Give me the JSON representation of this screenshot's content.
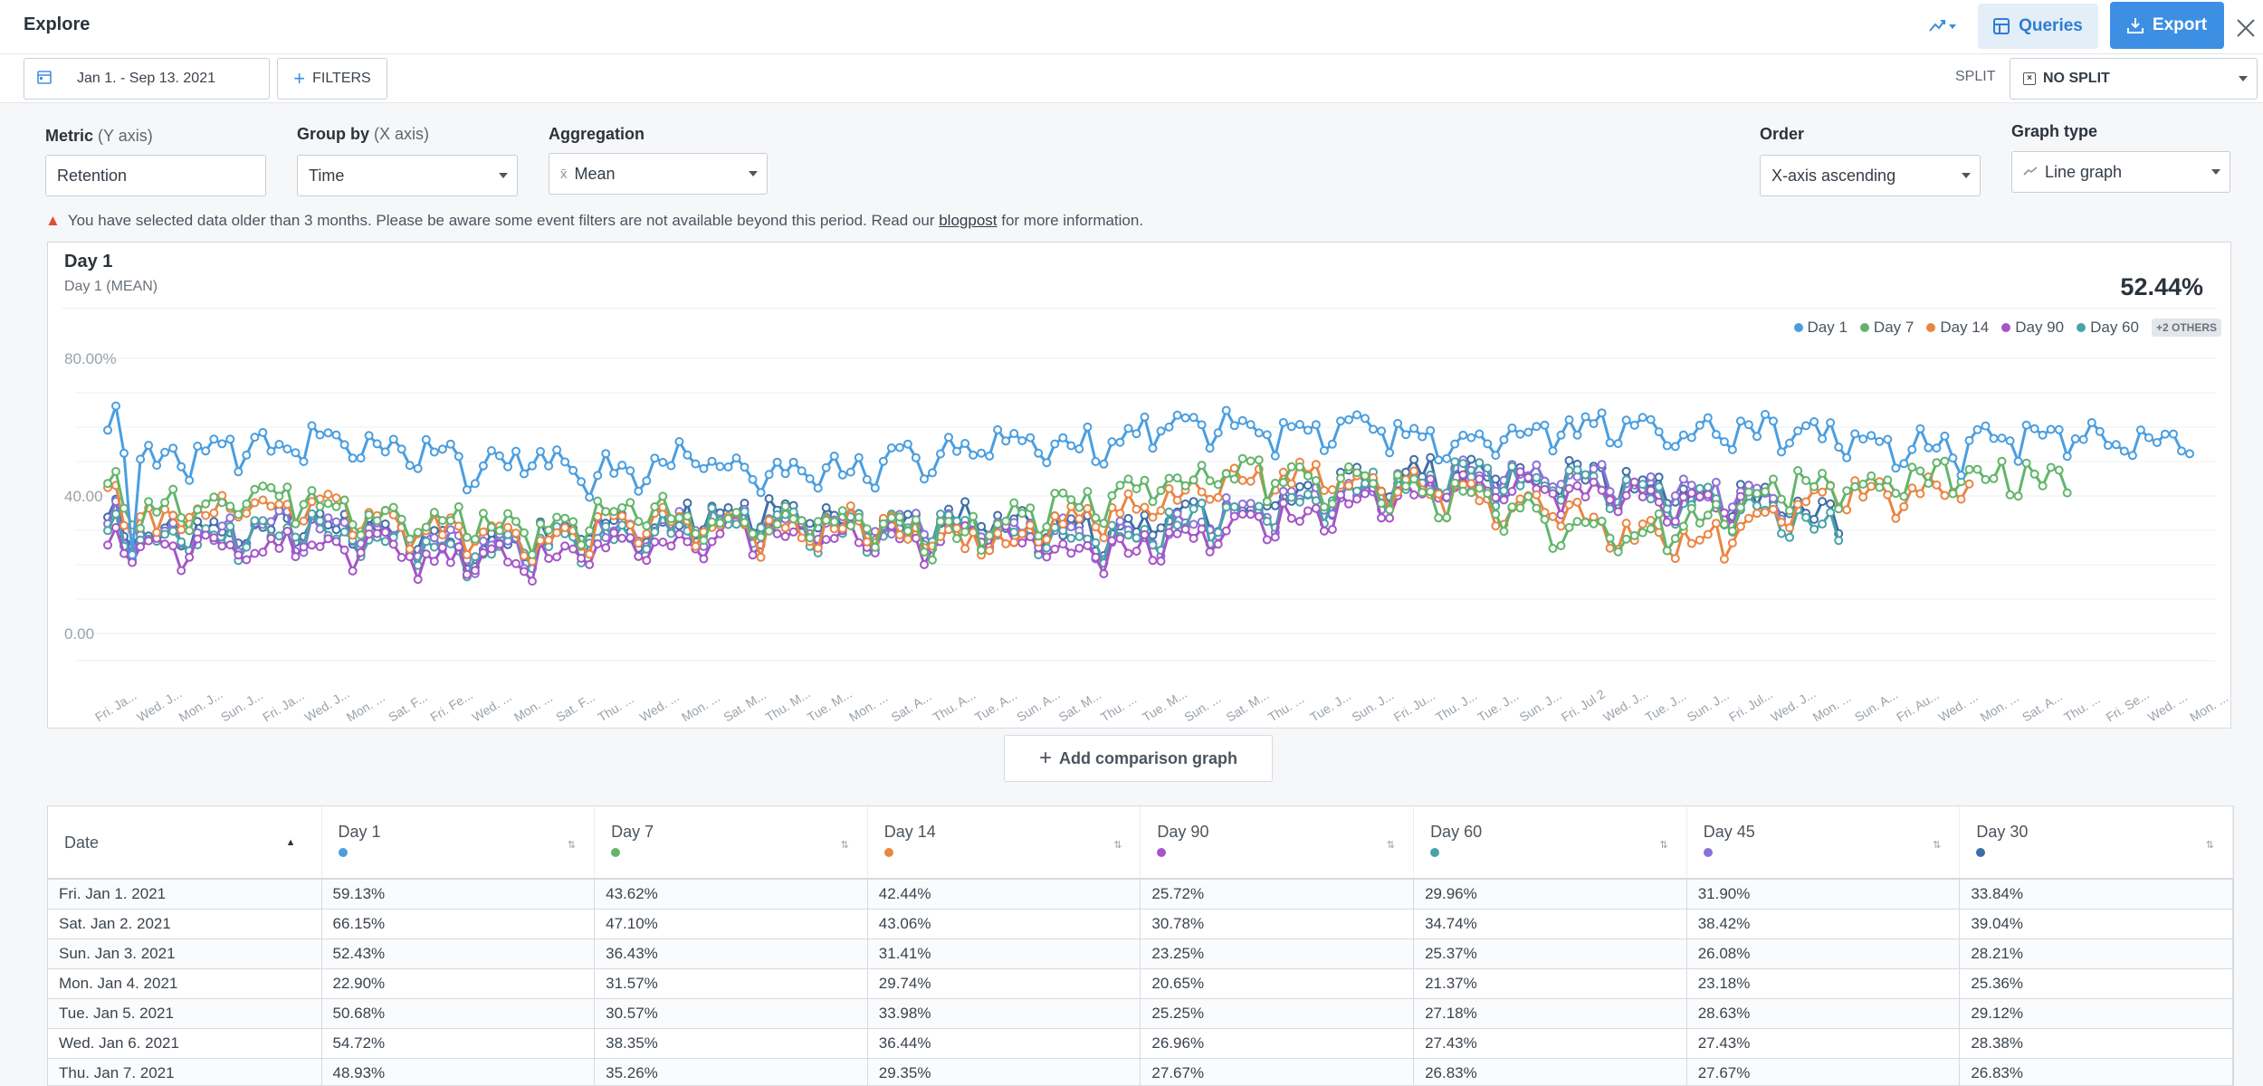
{
  "header": {
    "title": "Explore",
    "queries_label": "Queries",
    "export_label": "Export"
  },
  "filterbar": {
    "date_range": "Jan 1. - Sep 13. 2021",
    "filters_label": "FILTERS",
    "split_label": "SPLIT",
    "split_value": "NO SPLIT"
  },
  "controls": {
    "metric": {
      "label": "Metric",
      "sub": "(Y axis)",
      "value": "Retention"
    },
    "group_by": {
      "label": "Group by",
      "sub": "(X axis)",
      "value": "Time"
    },
    "aggregation": {
      "label": "Aggregation",
      "value": "Mean"
    },
    "order": {
      "label": "Order",
      "value": "X-axis ascending"
    },
    "graph_type": {
      "label": "Graph type",
      "value": "Line graph"
    }
  },
  "warning": {
    "text_before": "You have selected data older than 3 months. Please be aware some event filters are not available beyond this period. Read our",
    "link": "blogpost",
    "text_after": "for more information."
  },
  "chart_card": {
    "title": "Day 1",
    "subtitle": "Day 1 (MEAN)",
    "value": "52.44%",
    "others_badge": "+2 OTHERS",
    "add_comparison": "Add comparison graph"
  },
  "chart_data": {
    "type": "line",
    "ylim": [
      0,
      80
    ],
    "yticks": [
      "0.00",
      "40.00",
      "80.00%"
    ],
    "grid": true,
    "legend_position": "top-right",
    "x_ticks": [
      "Fri. Ja...",
      "Wed. J...",
      "Mon. J...",
      "Sun. J...",
      "Fri. Ja...",
      "Wed. J...",
      "Mon. ...",
      "Sat. F...",
      "Fri. Fe...",
      "Wed. ...",
      "Mon. ...",
      "Sat. F...",
      "Thu. ...",
      "Wed. ...",
      "Mon. ...",
      "Sat. M...",
      "Thu. M...",
      "Tue. M...",
      "Mon. ...",
      "Sat. A...",
      "Thu. A...",
      "Tue. A...",
      "Sun. A...",
      "Sat. M...",
      "Thu. ...",
      "Tue. M...",
      "Sun. ...",
      "Sat. M...",
      "Thu. ...",
      "Tue. J...",
      "Sun. J...",
      "Fri. Ju...",
      "Thu. J...",
      "Tue. J...",
      "Sun. J...",
      "Fri. Jul 2",
      "Wed. J...",
      "Tue. J...",
      "Sun. J...",
      "Fri. Jul...",
      "Wed. J...",
      "Mon. ...",
      "Sun. A...",
      "Fri. Au...",
      "Wed. ...",
      "Mon. ...",
      "Sat. A...",
      "Thu. ...",
      "Fri. Se...",
      "Wed. ...",
      "Mon. ..."
    ],
    "series_style": [
      {
        "name": "Day 1",
        "color": "#4a9ee0"
      },
      {
        "name": "Day 7",
        "color": "#62b56b"
      },
      {
        "name": "Day 14",
        "color": "#ea8543"
      },
      {
        "name": "Day 90",
        "color": "#a455c8"
      },
      {
        "name": "Day 60",
        "color": "#49a3a8"
      },
      {
        "name": "Day 45",
        "color": "#8a72d6"
      },
      {
        "name": "Day 30",
        "color": "#3d6ea8"
      }
    ],
    "series_ranges": [
      {
        "name": "Day 1",
        "start": 0,
        "end": 255,
        "base": [
          56,
          58,
          52,
          54,
          55,
          56,
          57,
          55,
          54,
          54,
          52,
          50,
          51,
          52,
          48,
          50,
          51,
          53,
          50,
          48,
          47,
          48,
          50,
          52,
          54,
          55,
          56,
          57,
          56,
          58,
          60,
          62,
          61,
          62,
          61,
          60,
          60,
          62,
          60,
          57,
          58,
          60,
          62,
          61,
          62,
          60,
          58,
          60,
          61,
          59,
          60,
          58,
          57,
          56,
          55,
          58,
          60,
          60,
          58,
          57,
          58,
          58
        ]
      },
      {
        "name": "Day 7",
        "start": 0,
        "end": 240,
        "base": [
          42,
          40,
          39,
          40,
          42,
          41,
          38,
          36,
          34,
          34,
          33,
          32,
          34,
          36,
          38,
          36,
          34,
          32,
          34,
          36,
          33,
          30,
          30,
          32,
          36,
          38,
          40,
          44,
          46,
          47,
          48,
          47,
          46,
          45,
          44,
          42,
          40,
          38,
          34,
          32,
          30,
          32,
          36,
          40,
          44,
          44,
          45,
          46,
          47,
          48,
          47,
          46,
          45,
          44,
          44,
          45
        ]
      },
      {
        "name": "Day 14",
        "start": 0,
        "end": 228,
        "base": [
          40,
          38,
          37,
          38,
          40,
          39,
          36,
          34,
          32,
          32,
          31,
          30,
          32,
          34,
          36,
          34,
          32,
          30,
          32,
          34,
          31,
          28,
          28,
          30,
          34,
          36,
          38,
          42,
          44,
          46,
          47,
          46,
          45,
          44,
          43,
          40,
          38,
          36,
          32,
          30,
          28,
          30,
          34,
          38,
          42,
          42,
          43,
          44,
          45,
          46,
          45,
          44,
          43,
          42
        ]
      },
      {
        "name": "Day 90",
        "start": 0,
        "end": 200,
        "base": [
          30,
          28,
          26,
          26,
          28,
          27,
          26,
          24,
          22,
          24,
          26,
          27,
          28,
          30,
          32,
          30,
          29,
          28,
          29,
          30,
          28,
          26,
          26,
          28,
          32,
          34,
          36,
          40,
          42,
          44,
          45,
          44,
          43,
          42,
          40,
          38,
          36,
          34,
          30,
          28,
          26,
          28,
          32,
          36,
          40,
          40
        ]
      },
      {
        "name": "Day 60",
        "start": 0,
        "end": 212,
        "base": [
          33,
          31,
          29,
          30,
          32,
          31,
          29,
          27,
          25,
          27,
          29,
          30,
          31,
          33,
          35,
          33,
          32,
          31,
          32,
          33,
          31,
          29,
          29,
          31,
          35,
          37,
          39,
          42,
          44,
          46,
          47,
          46,
          45,
          44,
          42,
          40,
          38,
          36,
          32,
          30,
          28,
          30,
          34,
          38,
          41,
          42,
          43
        ]
      },
      {
        "name": "Day 45",
        "start": 0,
        "end": 205,
        "base": [
          34,
          32,
          30,
          31,
          33,
          32,
          30,
          28,
          26,
          28,
          30,
          31,
          32,
          34,
          36,
          34,
          33,
          32,
          33,
          34,
          32,
          30,
          30,
          32,
          36,
          38,
          40,
          43,
          45,
          47,
          48,
          47,
          46,
          45,
          43,
          41,
          39,
          37,
          33,
          31,
          29,
          31,
          35,
          39,
          42,
          43
        ]
      },
      {
        "name": "Day 30",
        "start": 0,
        "end": 212,
        "base": [
          35,
          33,
          31,
          32,
          34,
          33,
          31,
          29,
          27,
          29,
          31,
          32,
          33,
          35,
          37,
          35,
          34,
          33,
          34,
          35,
          33,
          31,
          31,
          33,
          37,
          39,
          41,
          44,
          46,
          48,
          49,
          48,
          47,
          46,
          44,
          42,
          40,
          38,
          34,
          32,
          30,
          32,
          36,
          40,
          43,
          44,
          45
        ]
      }
    ],
    "n_points": 256
  },
  "table": {
    "date_header": "Date",
    "columns": [
      {
        "label": "Day 1",
        "color": "#4a9ee0"
      },
      {
        "label": "Day 7",
        "color": "#62b56b"
      },
      {
        "label": "Day 14",
        "color": "#ea8543"
      },
      {
        "label": "Day 90",
        "color": "#a455c8"
      },
      {
        "label": "Day 60",
        "color": "#49a3a8"
      },
      {
        "label": "Day 45",
        "color": "#8a72d6"
      },
      {
        "label": "Day 30",
        "color": "#3d6ea8"
      }
    ],
    "rows": [
      [
        "Fri. Jan 1. 2021",
        "59.13%",
        "43.62%",
        "42.44%",
        "25.72%",
        "29.96%",
        "31.90%",
        "33.84%"
      ],
      [
        "Sat. Jan 2. 2021",
        "66.15%",
        "47.10%",
        "43.06%",
        "30.78%",
        "34.74%",
        "38.42%",
        "39.04%"
      ],
      [
        "Sun. Jan 3. 2021",
        "52.43%",
        "36.43%",
        "31.41%",
        "23.25%",
        "25.37%",
        "26.08%",
        "28.21%"
      ],
      [
        "Mon. Jan 4. 2021",
        "22.90%",
        "31.57%",
        "29.74%",
        "20.65%",
        "21.37%",
        "23.18%",
        "25.36%"
      ],
      [
        "Tue. Jan 5. 2021",
        "50.68%",
        "30.57%",
        "33.98%",
        "25.25%",
        "27.18%",
        "28.63%",
        "29.12%"
      ],
      [
        "Wed. Jan 6. 2021",
        "54.72%",
        "38.35%",
        "36.44%",
        "26.96%",
        "27.43%",
        "27.43%",
        "28.38%"
      ],
      [
        "Thu. Jan 7. 2021",
        "48.93%",
        "35.26%",
        "29.35%",
        "27.67%",
        "26.83%",
        "27.67%",
        "26.83%"
      ]
    ]
  }
}
